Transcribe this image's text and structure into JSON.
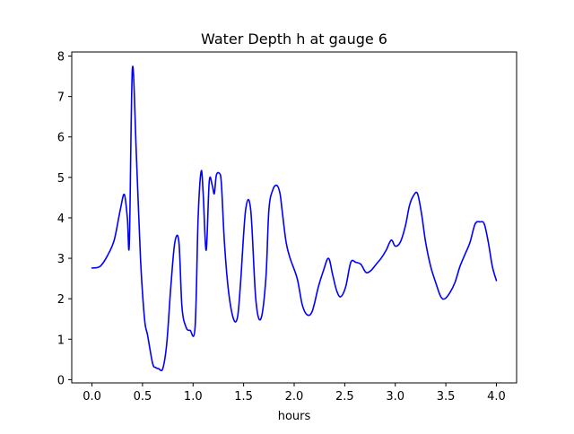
{
  "chart_data": {
    "type": "line",
    "title": "Water Depth h at gauge 6",
    "xlabel": "hours",
    "ylabel": "",
    "xlim": [
      -0.2,
      4.2
    ],
    "ylim": [
      -0.08,
      8.1
    ],
    "grid": false,
    "legend": "none",
    "x_ticks": [
      0.0,
      0.5,
      1.0,
      1.5,
      2.0,
      2.5,
      3.0,
      3.5,
      4.0
    ],
    "x_tick_labels": [
      "0.0",
      "0.5",
      "1.0",
      "1.5",
      "2.0",
      "2.5",
      "3.0",
      "3.5",
      "4.0"
    ],
    "y_ticks": [
      0,
      1,
      2,
      3,
      4,
      5,
      6,
      7,
      8
    ],
    "y_tick_labels": [
      "0",
      "1",
      "2",
      "3",
      "4",
      "5",
      "6",
      "7",
      "8"
    ],
    "series": [
      {
        "color": "#0000ff",
        "x": [
          0.0,
          0.08,
          0.15,
          0.22,
          0.28,
          0.32,
          0.35,
          0.37,
          0.4,
          0.44,
          0.48,
          0.52,
          0.55,
          0.6,
          0.63,
          0.66,
          0.7,
          0.74,
          0.78,
          0.82,
          0.86,
          0.89,
          0.93,
          0.97,
          1.02,
          1.05,
          1.08,
          1.1,
          1.13,
          1.16,
          1.19,
          1.21,
          1.23,
          1.26,
          1.28,
          1.31,
          1.35,
          1.4,
          1.44,
          1.47,
          1.52,
          1.57,
          1.62,
          1.67,
          1.72,
          1.75,
          1.79,
          1.83,
          1.86,
          1.88,
          1.92,
          1.96,
          2.03,
          2.08,
          2.13,
          2.18,
          2.24,
          2.29,
          2.34,
          2.38,
          2.42,
          2.46,
          2.51,
          2.56,
          2.61,
          2.66,
          2.71,
          2.76,
          2.81,
          2.86,
          2.91,
          2.96,
          3.0,
          3.05,
          3.1,
          3.14,
          3.18,
          3.22,
          3.26,
          3.3,
          3.35,
          3.4,
          3.45,
          3.49,
          3.54,
          3.59,
          3.64,
          3.69,
          3.74,
          3.79,
          3.84,
          3.88,
          3.92,
          3.96,
          4.0
        ],
        "y": [
          2.76,
          2.8,
          3.05,
          3.45,
          4.2,
          4.58,
          4.0,
          3.4,
          7.7,
          5.5,
          3.0,
          1.5,
          1.1,
          0.4,
          0.3,
          0.27,
          0.27,
          0.9,
          2.3,
          3.4,
          3.4,
          1.8,
          1.3,
          1.22,
          1.3,
          4.0,
          5.15,
          4.6,
          3.2,
          4.9,
          4.8,
          4.6,
          5.05,
          5.1,
          4.85,
          3.4,
          2.2,
          1.5,
          1.55,
          2.4,
          4.2,
          4.2,
          2.0,
          1.5,
          2.5,
          4.2,
          4.7,
          4.8,
          4.6,
          4.2,
          3.4,
          3.0,
          2.5,
          1.85,
          1.6,
          1.7,
          2.3,
          2.7,
          3.0,
          2.6,
          2.2,
          2.05,
          2.3,
          2.9,
          2.9,
          2.85,
          2.65,
          2.7,
          2.85,
          3.0,
          3.2,
          3.45,
          3.3,
          3.4,
          3.8,
          4.3,
          4.55,
          4.6,
          4.1,
          3.4,
          2.8,
          2.4,
          2.05,
          2.0,
          2.15,
          2.4,
          2.8,
          3.1,
          3.4,
          3.85,
          3.9,
          3.85,
          3.4,
          2.8,
          2.45
        ]
      }
    ]
  }
}
